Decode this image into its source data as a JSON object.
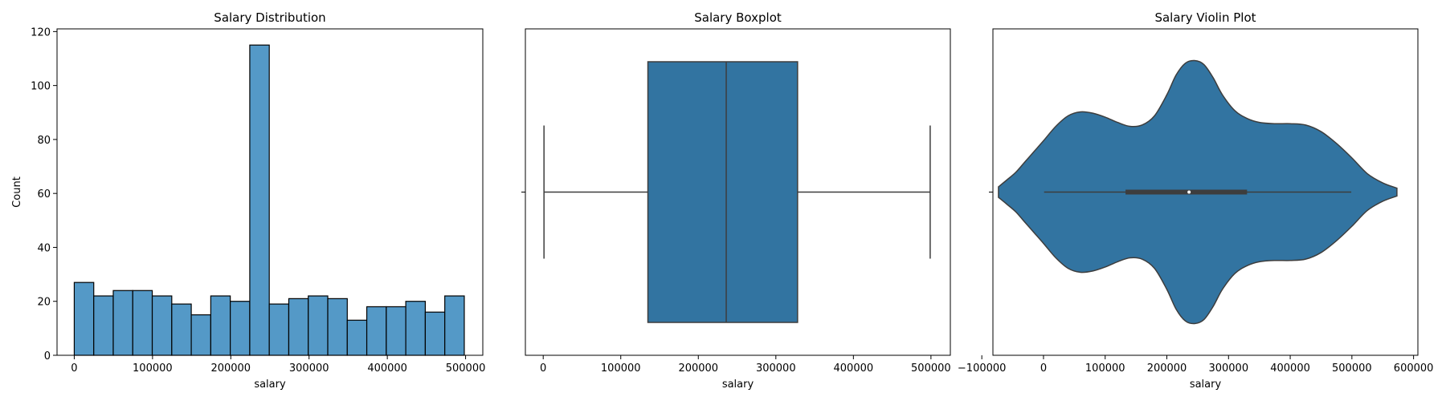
{
  "colors": {
    "hist_bar": "#5499c7",
    "box_fill": "#3274a1",
    "violin_fill": "#3274a1",
    "line_gray": "#3d3d3d",
    "edge": "#000000"
  },
  "chart_data": [
    {
      "type": "histogram",
      "title": "Salary Distribution",
      "xlabel": "salary",
      "ylabel": "Count",
      "xlim": [
        -22000,
        522000
      ],
      "ylim": [
        0,
        121
      ],
      "xticks": [
        0,
        100000,
        200000,
        300000,
        400000,
        500000
      ],
      "yticks": [
        0,
        20,
        40,
        60,
        80,
        100,
        120
      ],
      "bin_start": 0,
      "bin_width": 24917,
      "values": [
        27,
        22,
        24,
        24,
        22,
        19,
        15,
        22,
        20,
        115,
        19,
        21,
        22,
        21,
        13,
        18,
        18,
        20,
        16,
        22
      ]
    },
    {
      "type": "boxplot",
      "title": "Salary Boxplot",
      "xlabel": "salary",
      "xlim": [
        -23000,
        525000
      ],
      "xticks": [
        0,
        100000,
        200000,
        300000,
        400000,
        500000
      ],
      "whisker_low": 1000,
      "q1": 135000,
      "median": 236000,
      "q3": 328000,
      "whisker_high": 499000
    },
    {
      "type": "violin",
      "title": "Salary Violin Plot",
      "xlabel": "salary",
      "xlim": [
        -82000,
        607000
      ],
      "xticks": [
        -100000,
        0,
        100000,
        200000,
        300000,
        400000,
        500000,
        600000
      ],
      "whisker_low": 1000,
      "q1": 133000,
      "median": 236000,
      "q3": 330000,
      "whisker_high": 499000,
      "density_support": [
        -73000,
        573000
      ],
      "density_x": [
        -73000,
        -60000,
        -45000,
        -30000,
        -15000,
        0,
        20000,
        40000,
        60000,
        80000,
        100000,
        120000,
        140000,
        160000,
        180000,
        200000,
        215000,
        230000,
        245000,
        260000,
        275000,
        290000,
        310000,
        330000,
        350000,
        375000,
        400000,
        425000,
        450000,
        475000,
        500000,
        525000,
        550000,
        573000
      ],
      "density": [
        0.04,
        0.09,
        0.15,
        0.23,
        0.31,
        0.39,
        0.5,
        0.58,
        0.61,
        0.6,
        0.57,
        0.53,
        0.5,
        0.51,
        0.58,
        0.74,
        0.89,
        0.98,
        1.0,
        0.97,
        0.87,
        0.74,
        0.62,
        0.56,
        0.53,
        0.52,
        0.52,
        0.51,
        0.46,
        0.37,
        0.26,
        0.14,
        0.07,
        0.03
      ]
    }
  ]
}
